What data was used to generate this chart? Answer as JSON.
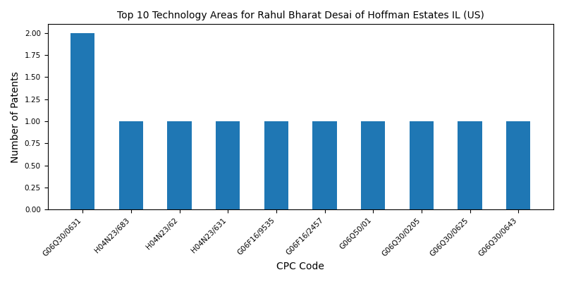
{
  "title": "Top 10 Technology Areas for Rahul Bharat Desai of Hoffman Estates IL (US)",
  "xlabel": "CPC Code",
  "ylabel": "Number of Patents",
  "categories": [
    "G06Q30/0631",
    "H04N23/683",
    "H04N23/62",
    "H04N23/631",
    "G06F16/9535",
    "G06F16/2457",
    "G06Q50/01",
    "G06Q30/0205",
    "G06Q30/0625",
    "G06Q30/0643"
  ],
  "values": [
    2,
    1,
    1,
    1,
    1,
    1,
    1,
    1,
    1,
    1
  ],
  "bar_color": "#1f77b4",
  "ylim": [
    0,
    2.1
  ],
  "yticks": [
    0.0,
    0.25,
    0.5,
    0.75,
    1.0,
    1.25,
    1.5,
    1.75,
    2.0
  ],
  "bar_width": 0.5,
  "figsize": [
    8.0,
    4.0
  ],
  "dpi": 100,
  "title_fontsize": 10,
  "label_fontsize": 10,
  "tick_fontsize": 7.5
}
